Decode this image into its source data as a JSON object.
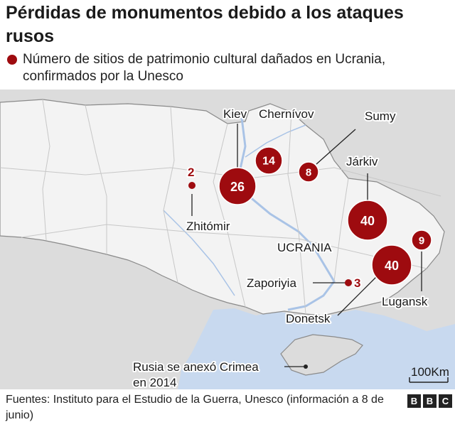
{
  "title": "Pérdidas de monumentos debido a los ataques rusos",
  "legend": {
    "text": "Número de sitios de patrimonio cultural dañados en Ucrania, confirmados por la Unesco",
    "color": "#9e0b0f"
  },
  "map": {
    "country_label": "UCRANIA",
    "crimea_note": "Rusia se anexó Crimea en 2014",
    "scale_label": "100Km",
    "colors": {
      "ukraine": "#f3f3f3",
      "neighbors": "#dcdcdc",
      "sea": "#c8d9ef",
      "rivers": "#a9c3e6",
      "borders": "#8a8a8a",
      "bubble": "#9e0b0f"
    },
    "sites": [
      {
        "id": "kiev",
        "name": "Kiev",
        "count": "26",
        "value": 26
      },
      {
        "id": "chernivov",
        "name": "Chernívov",
        "count": "14",
        "value": 14
      },
      {
        "id": "sumy",
        "name": "Sumy",
        "count": "8",
        "value": 8
      },
      {
        "id": "jarkiv",
        "name": "Járkiv",
        "count": "40",
        "value": 40
      },
      {
        "id": "zhitomir",
        "name": "Zhitómir",
        "count": "2",
        "value": 2
      },
      {
        "id": "donetsk",
        "name": "Donetsk",
        "count": "40",
        "value": 40
      },
      {
        "id": "lugansk",
        "name": "Lugansk",
        "count": "9",
        "value": 9
      },
      {
        "id": "zaporiyia",
        "name": "Zaporiyia",
        "count": "3",
        "value": 3
      }
    ]
  },
  "footer": {
    "source": "Fuentes: Instituto para el Estudio de la Guerra, Unesco (información a 8 de junio)",
    "logo": [
      "B",
      "B",
      "C"
    ]
  }
}
